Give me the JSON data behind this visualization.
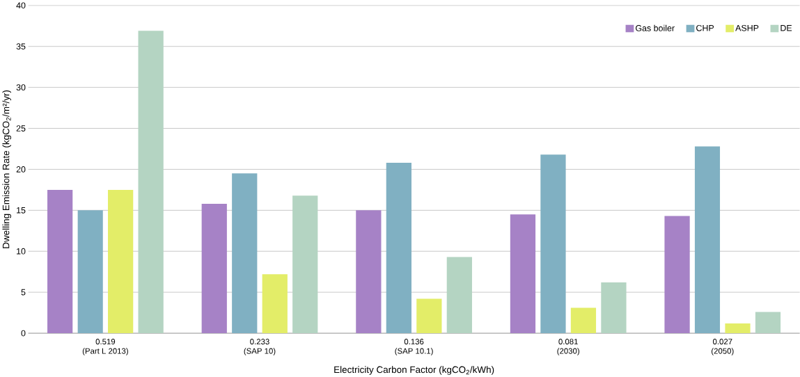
{
  "chart_data": {
    "type": "bar",
    "xlabel": "Electricity Carbon Factor (kgCO$_{2}$/kWh)",
    "ylabel": "Dwelling Emission Rate (kgCO$_{2}$/m²/yr)",
    "categories": [
      "0.519\n(Part L 2013)",
      "0.233\n(SAP 10)",
      "0.136\n(SAP 10.1)",
      "0.081\n(2030)",
      "0.027\n(2050)"
    ],
    "series": [
      {
        "name": "Gas boiler",
        "color": "#a682c6",
        "values": [
          17.5,
          15.8,
          15.0,
          14.5,
          14.3
        ]
      },
      {
        "name": "CHP",
        "color": "#80b0c2",
        "values": [
          15.0,
          19.5,
          20.8,
          21.8,
          22.8
        ]
      },
      {
        "name": "ASHP",
        "color": "#e3ed68",
        "values": [
          17.5,
          7.2,
          4.2,
          3.1,
          1.2
        ]
      },
      {
        "name": "DE",
        "color": "#b4d4c2",
        "values": [
          36.9,
          16.8,
          9.3,
          6.2,
          2.6
        ]
      }
    ],
    "ylim": [
      0,
      40
    ],
    "yticks": [
      0,
      5,
      10,
      15,
      20,
      25,
      30,
      35,
      40
    ],
    "grid": "y",
    "legend": "top right"
  }
}
